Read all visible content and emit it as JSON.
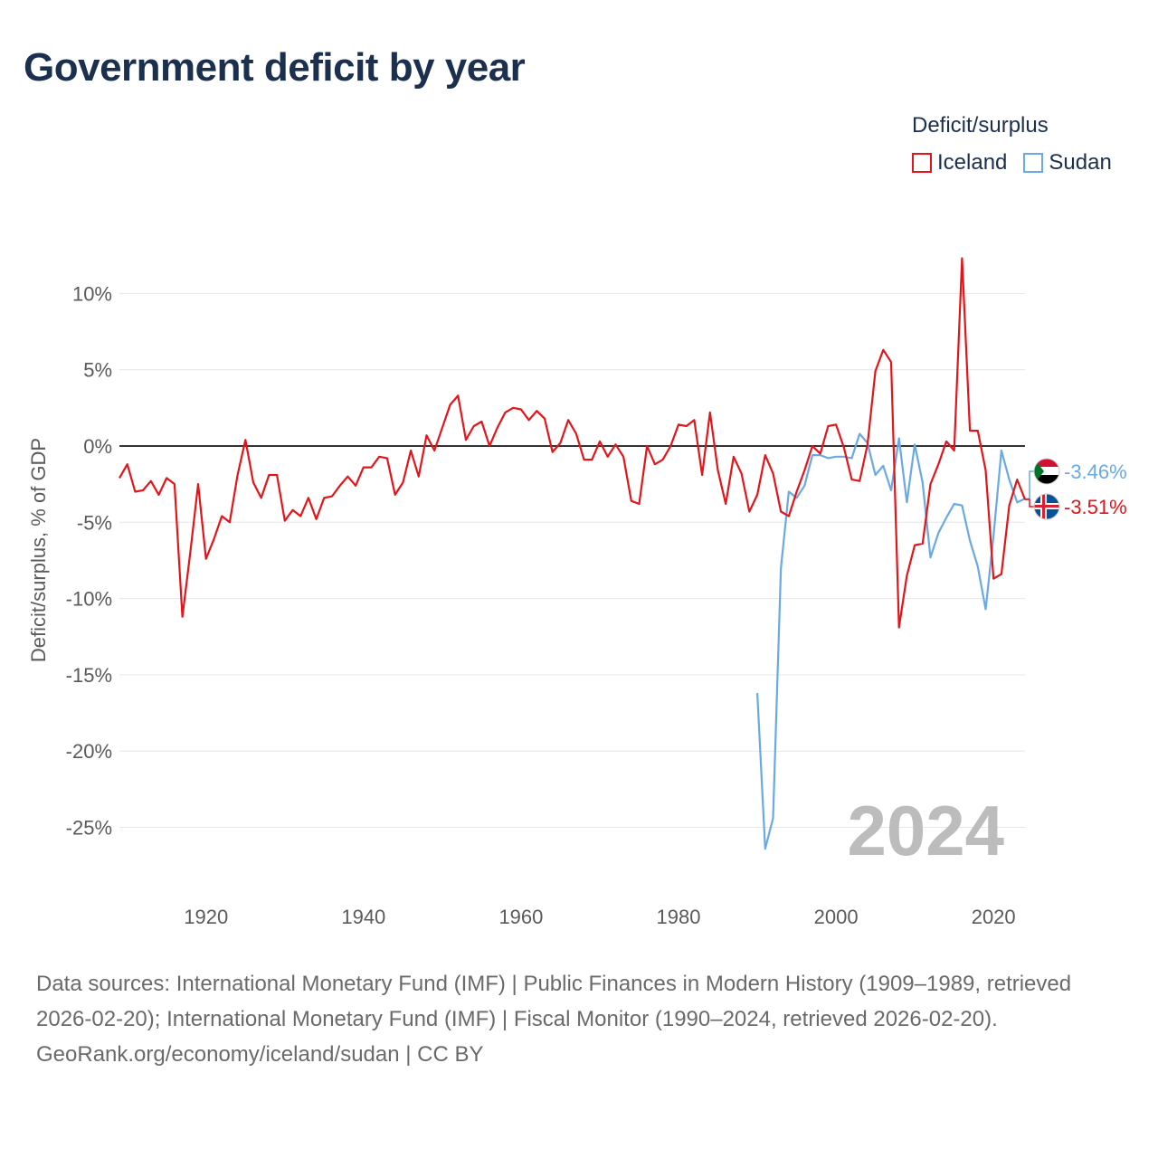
{
  "title": "Government deficit by year",
  "legend": {
    "title": "Deficit/surplus",
    "items": [
      {
        "name": "Iceland",
        "color": "#e3151a"
      },
      {
        "name": "Sudan",
        "color": "#6aa9e3"
      }
    ]
  },
  "footer": {
    "sources": "Data sources: International Monetary Fund (IMF) | Public Finances in Modern History (1909–1989, retrieved 2026-02-20); International Monetary Fund (IMF) | Fiscal Monitor (1990–2024, retrieved 2026-02-20).",
    "credit": "GeoRank.org/economy/iceland/sudan | CC BY"
  },
  "chart_data": {
    "type": "line",
    "title": "Government deficit by year",
    "xlabel": "",
    "ylabel": "Deficit/surplus, % of GDP",
    "xlim": [
      1909,
      2024
    ],
    "ylim": [
      -29,
      15
    ],
    "x_ticks": [
      1920,
      1940,
      1960,
      1980,
      2000,
      2020
    ],
    "y_ticks": [
      10,
      5,
      0,
      -5,
      -10,
      -15,
      -20,
      -25
    ],
    "y_tick_labels": [
      "10%",
      "5%",
      "0%",
      "-5%",
      "-10%",
      "-15%",
      "-20%",
      "-25%"
    ],
    "watermark_year": "2024",
    "grid": true,
    "series": [
      {
        "name": "Iceland",
        "color": "#e3151a",
        "end_label": "-3.51%",
        "points": [
          [
            1909,
            -2.1
          ],
          [
            1910,
            -1.2
          ],
          [
            1911,
            -3.0
          ],
          [
            1912,
            -2.9
          ],
          [
            1913,
            -2.3
          ],
          [
            1914,
            -3.2
          ],
          [
            1915,
            -2.1
          ],
          [
            1916,
            -2.5
          ],
          [
            1917,
            -11.2
          ],
          [
            1918,
            -7.0
          ],
          [
            1919,
            -2.5
          ],
          [
            1920,
            -7.4
          ],
          [
            1921,
            -6.1
          ],
          [
            1922,
            -4.6
          ],
          [
            1923,
            -5.0
          ],
          [
            1924,
            -1.9
          ],
          [
            1925,
            0.4
          ],
          [
            1926,
            -2.4
          ],
          [
            1927,
            -3.4
          ],
          [
            1928,
            -1.9
          ],
          [
            1929,
            -1.9
          ],
          [
            1930,
            -4.9
          ],
          [
            1931,
            -4.2
          ],
          [
            1932,
            -4.6
          ],
          [
            1933,
            -3.4
          ],
          [
            1934,
            -4.8
          ],
          [
            1935,
            -3.4
          ],
          [
            1936,
            -3.3
          ],
          [
            1937,
            -2.6
          ],
          [
            1938,
            -2.0
          ],
          [
            1939,
            -2.6
          ],
          [
            1940,
            -1.4
          ],
          [
            1941,
            -1.4
          ],
          [
            1942,
            -0.7
          ],
          [
            1943,
            -0.8
          ],
          [
            1944,
            -3.2
          ],
          [
            1945,
            -2.4
          ],
          [
            1946,
            -0.3
          ],
          [
            1947,
            -2.0
          ],
          [
            1948,
            0.7
          ],
          [
            1949,
            -0.3
          ],
          [
            1950,
            1.2
          ],
          [
            1951,
            2.7
          ],
          [
            1952,
            3.3
          ],
          [
            1953,
            0.4
          ],
          [
            1954,
            1.3
          ],
          [
            1955,
            1.6
          ],
          [
            1956,
            0.0
          ],
          [
            1957,
            1.2
          ],
          [
            1958,
            2.2
          ],
          [
            1959,
            2.5
          ],
          [
            1960,
            2.4
          ],
          [
            1961,
            1.7
          ],
          [
            1962,
            2.3
          ],
          [
            1963,
            1.8
          ],
          [
            1964,
            -0.4
          ],
          [
            1965,
            0.2
          ],
          [
            1966,
            1.7
          ],
          [
            1967,
            0.8
          ],
          [
            1968,
            -0.9
          ],
          [
            1969,
            -0.9
          ],
          [
            1970,
            0.3
          ],
          [
            1971,
            -0.7
          ],
          [
            1972,
            0.1
          ],
          [
            1973,
            -0.7
          ],
          [
            1974,
            -3.6
          ],
          [
            1975,
            -3.8
          ],
          [
            1976,
            0.0
          ],
          [
            1977,
            -1.2
          ],
          [
            1978,
            -0.9
          ],
          [
            1979,
            0.0
          ],
          [
            1980,
            1.4
          ],
          [
            1981,
            1.3
          ],
          [
            1982,
            1.7
          ],
          [
            1983,
            -1.9
          ],
          [
            1984,
            2.2
          ],
          [
            1985,
            -1.6
          ],
          [
            1986,
            -3.8
          ],
          [
            1987,
            -0.7
          ],
          [
            1988,
            -1.8
          ],
          [
            1989,
            -4.3
          ],
          [
            1990,
            -3.2
          ],
          [
            1991,
            -0.6
          ],
          [
            1992,
            -1.8
          ],
          [
            1993,
            -4.3
          ],
          [
            1994,
            -4.6
          ],
          [
            1995,
            -3.0
          ],
          [
            1996,
            -1.6
          ],
          [
            1997,
            0.0
          ],
          [
            1998,
            -0.5
          ],
          [
            1999,
            1.3
          ],
          [
            2000,
            1.4
          ],
          [
            2001,
            -0.1
          ],
          [
            2002,
            -2.2
          ],
          [
            2003,
            -2.3
          ],
          [
            2004,
            0.1
          ],
          [
            2005,
            4.9
          ],
          [
            2006,
            6.3
          ],
          [
            2007,
            5.5
          ],
          [
            2008,
            -11.9
          ],
          [
            2009,
            -8.5
          ],
          [
            2010,
            -6.5
          ],
          [
            2011,
            -6.4
          ],
          [
            2012,
            -2.5
          ],
          [
            2013,
            -1.2
          ],
          [
            2014,
            0.3
          ],
          [
            2015,
            -0.3
          ],
          [
            2016,
            12.3
          ],
          [
            2017,
            1.0
          ],
          [
            2018,
            1.0
          ],
          [
            2019,
            -1.6
          ],
          [
            2020,
            -8.7
          ],
          [
            2021,
            -8.4
          ],
          [
            2022,
            -3.9
          ],
          [
            2023,
            -2.2
          ],
          [
            2024,
            -3.51
          ]
        ]
      },
      {
        "name": "Sudan",
        "color": "#6aa9e3",
        "end_label": "-3.46%",
        "points": [
          [
            1990,
            -16.2
          ],
          [
            1991,
            -26.4
          ],
          [
            1992,
            -24.4
          ],
          [
            1993,
            -8.0
          ],
          [
            1994,
            -3.0
          ],
          [
            1995,
            -3.4
          ],
          [
            1996,
            -2.6
          ],
          [
            1997,
            -0.6
          ],
          [
            1998,
            -0.6
          ],
          [
            1999,
            -0.8
          ],
          [
            2000,
            -0.7
          ],
          [
            2001,
            -0.7
          ],
          [
            2002,
            -0.8
          ],
          [
            2003,
            0.8
          ],
          [
            2004,
            0.2
          ],
          [
            2005,
            -1.9
          ],
          [
            2006,
            -1.3
          ],
          [
            2007,
            -2.9
          ],
          [
            2008,
            0.5
          ],
          [
            2009,
            -3.7
          ],
          [
            2010,
            0.1
          ],
          [
            2011,
            -2.4
          ],
          [
            2012,
            -7.3
          ],
          [
            2013,
            -5.7
          ],
          [
            2014,
            -4.7
          ],
          [
            2015,
            -3.8
          ],
          [
            2016,
            -3.9
          ],
          [
            2017,
            -6.2
          ],
          [
            2018,
            -7.9
          ],
          [
            2019,
            -10.7
          ],
          [
            2020,
            -5.9
          ],
          [
            2021,
            -0.3
          ],
          [
            2022,
            -2.2
          ],
          [
            2023,
            -3.7
          ],
          [
            2024,
            -3.46
          ]
        ]
      }
    ]
  }
}
